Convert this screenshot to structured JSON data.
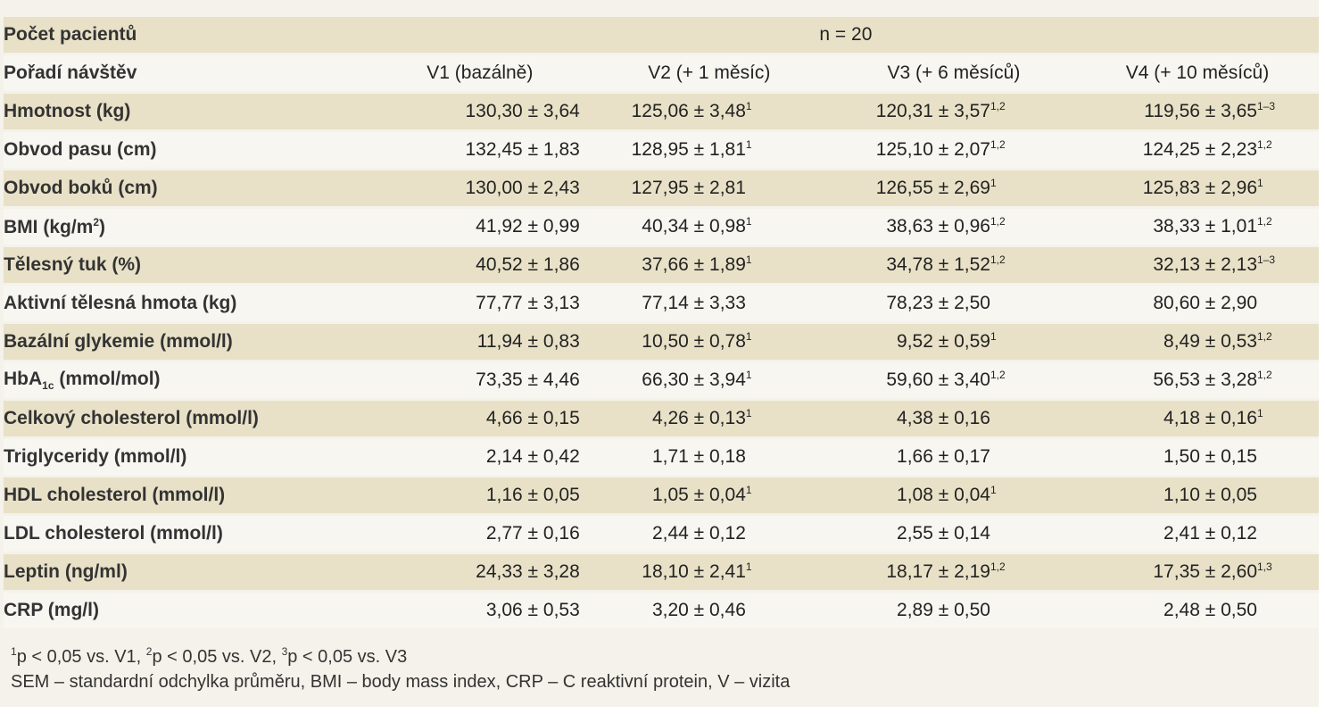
{
  "header": {
    "count_label": "Počet pacientů",
    "count_value": "n = 20",
    "visits_label": "Pořadí návštěv",
    "visits": [
      "V1 (bazálně)",
      "V2 (+ 1 měsíc)",
      "V3 (+ 6 měsíců)",
      "V4 (+ 10 měsíců)"
    ]
  },
  "rows": [
    {
      "label": "Hmotnost (kg)",
      "values": [
        [
          "130,30 ± 3,64",
          ""
        ],
        [
          "125,06 ± 3,48",
          "1"
        ],
        [
          "120,31 ± 3,57",
          "1,2"
        ],
        [
          "119,56 ± 3,65",
          "1–3"
        ]
      ]
    },
    {
      "label": "Obvod pasu (cm)",
      "values": [
        [
          "132,45 ± 1,83",
          ""
        ],
        [
          "128,95 ± 1,81",
          "1"
        ],
        [
          "125,10 ± 2,07",
          "1,2"
        ],
        [
          "124,25 ± 2,23",
          "1,2"
        ]
      ]
    },
    {
      "label": "Obvod boků (cm)",
      "values": [
        [
          "130,00 ± 2,43",
          ""
        ],
        [
          "127,95 ± 2,81",
          ""
        ],
        [
          "126,55 ± 2,69",
          "1"
        ],
        [
          "125,83 ± 2,96",
          "1"
        ]
      ]
    },
    {
      "label": "BMI (kg/m",
      "label_sup": "2",
      "label_tail": ")",
      "values": [
        [
          "41,92 ± 0,99",
          ""
        ],
        [
          "40,34 ± 0,98",
          "1"
        ],
        [
          "38,63 ± 0,96",
          "1,2"
        ],
        [
          "38,33 ± 1,01",
          "1,2"
        ]
      ]
    },
    {
      "label": "Tělesný tuk (%)",
      "values": [
        [
          "40,52 ± 1,86",
          ""
        ],
        [
          "37,66 ± 1,89",
          "1"
        ],
        [
          "34,78 ± 1,52",
          "1,2"
        ],
        [
          "32,13 ± 2,13",
          "1–3"
        ]
      ]
    },
    {
      "label": "Aktivní tělesná hmota (kg)",
      "values": [
        [
          "77,77 ± 3,13",
          ""
        ],
        [
          "77,14 ± 3,33",
          ""
        ],
        [
          "78,23 ± 2,50",
          ""
        ],
        [
          "80,60 ± 2,90",
          ""
        ]
      ]
    },
    {
      "label": "Bazální glykemie (mmol/l)",
      "values": [
        [
          "11,94 ± 0,83",
          ""
        ],
        [
          "10,50 ± 0,78",
          "1"
        ],
        [
          "9,52 ± 0,59",
          "1"
        ],
        [
          "8,49 ± 0,53",
          "1,2"
        ]
      ]
    },
    {
      "label": "HbA",
      "label_sub": "1c",
      "label_tail": " (mmol/mol)",
      "values": [
        [
          "73,35 ± 4,46",
          ""
        ],
        [
          "66,30 ± 3,94",
          "1"
        ],
        [
          "59,60 ± 3,40",
          "1,2"
        ],
        [
          "56,53 ± 3,28",
          "1,2"
        ]
      ]
    },
    {
      "label": "Celkový cholesterol (mmol/l)",
      "values": [
        [
          "4,66 ± 0,15",
          ""
        ],
        [
          "4,26 ± 0,13",
          "1"
        ],
        [
          "4,38 ± 0,16",
          ""
        ],
        [
          "4,18 ± 0,16",
          "1"
        ]
      ]
    },
    {
      "label": "Triglyceridy (mmol/l)",
      "values": [
        [
          "2,14 ± 0,42",
          ""
        ],
        [
          "1,71 ± 0,18",
          ""
        ],
        [
          "1,66 ± 0,17",
          ""
        ],
        [
          "1,50 ± 0,15",
          ""
        ]
      ]
    },
    {
      "label": "HDL cholesterol (mmol/l)",
      "values": [
        [
          "1,16 ± 0,05",
          ""
        ],
        [
          "1,05 ± 0,04",
          "1"
        ],
        [
          "1,08 ± 0,04",
          "1"
        ],
        [
          "1,10 ± 0,05",
          ""
        ]
      ]
    },
    {
      "label": "LDL cholesterol (mmol/l)",
      "values": [
        [
          "2,77 ± 0,16",
          ""
        ],
        [
          "2,44 ± 0,12",
          ""
        ],
        [
          "2,55 ± 0,14",
          ""
        ],
        [
          "2,41 ± 0,12",
          ""
        ]
      ]
    },
    {
      "label": "Leptin (ng/ml)",
      "values": [
        [
          "24,33 ± 3,28",
          ""
        ],
        [
          "18,10 ± 2,41",
          "1"
        ],
        [
          "18,17 ± 2,19",
          "1,2"
        ],
        [
          "17,35 ± 2,60",
          "1,3"
        ]
      ]
    },
    {
      "label": "CRP (mg/l)",
      "values": [
        [
          "3,06 ± 0,53",
          ""
        ],
        [
          "3,20 ± 0,46",
          ""
        ],
        [
          "2,89 ± 0,50",
          ""
        ],
        [
          "2,48 ± 0,50",
          ""
        ]
      ]
    }
  ],
  "row_shading": [
    "dark",
    "light",
    "dark",
    "light",
    "dark",
    "light",
    "dark",
    "light",
    "dark",
    "light",
    "dark",
    "light",
    "dark",
    "light",
    "dark",
    "light"
  ],
  "footer": {
    "line1": [
      [
        "1",
        "p < 0,05 vs. V1, "
      ],
      [
        "2",
        "p < 0,05 vs. V2, "
      ],
      [
        "3",
        "p < 0,05 vs. V3"
      ]
    ],
    "line2": "SEM – standardní odchylka průměru, BMI – body mass index, CRP – C reaktivní protein, V – vizita"
  }
}
